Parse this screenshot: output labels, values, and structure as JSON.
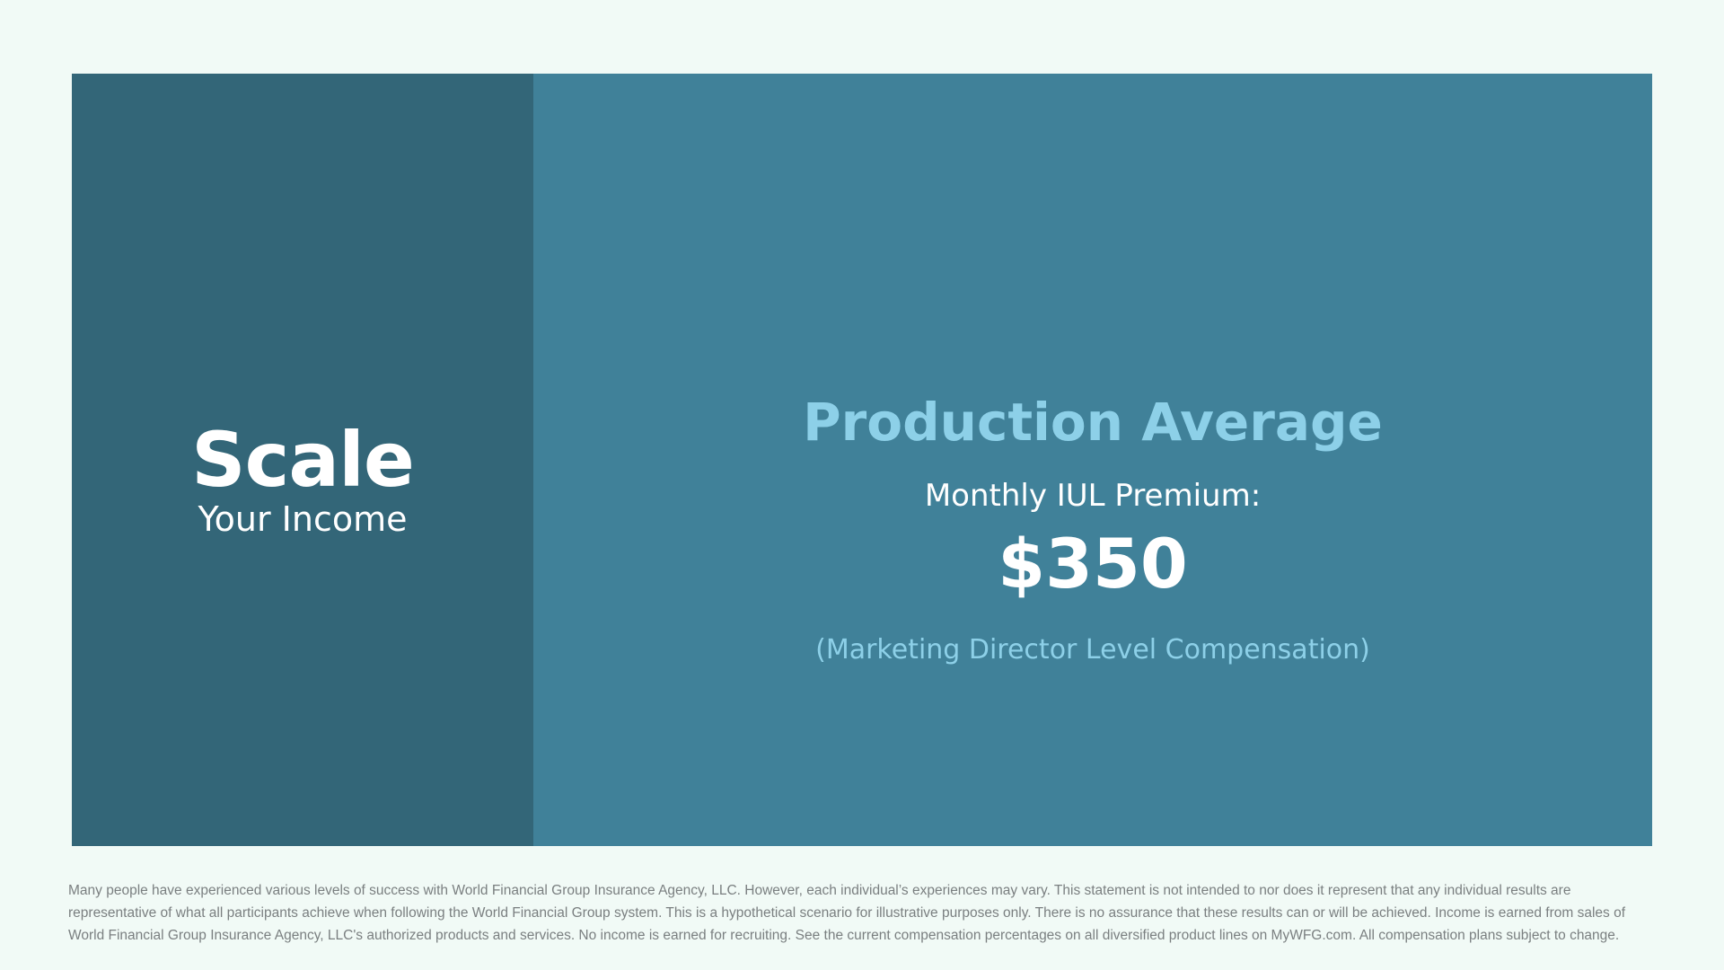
{
  "left_panel": {
    "title": "Scale",
    "subtitle": "Your Income"
  },
  "right_panel": {
    "title": "Production Average",
    "label": "Monthly IUL Premium:",
    "amount": "$350",
    "note": "(Marketing Director Level Compensation)"
  },
  "disclaimer": "Many people have experienced various levels of success with World Financial Group Insurance Agency, LLC. However, each individual’s experiences may vary. This statement is not intended to nor does it represent that any individual results are representative of what all participants achieve when following the World Financial Group system. This is a hypothetical scenario for illustrative purposes only. There is no assurance that these results can or will be achieved. Income is earned from sales of World Financial Group Insurance Agency, LLC's authorized products and services. No income is earned for recruiting. See the current compensation percentages on all diversified product lines on MyWFG.com. All compensation plans subject to change.",
  "colors": {
    "background": "#f1faf6",
    "left_panel": "#336678",
    "right_panel": "#408199",
    "accent": "#8dd0e8"
  }
}
